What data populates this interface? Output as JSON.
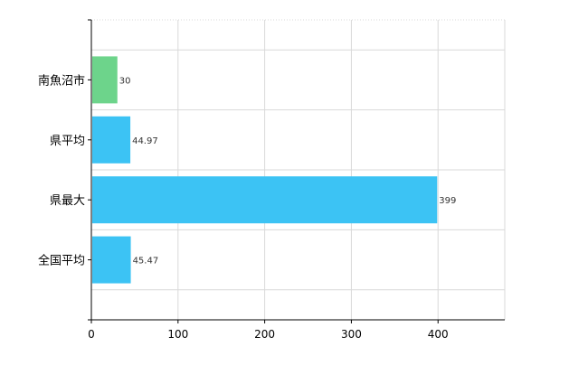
{
  "chart_data": {
    "type": "bar",
    "orientation": "horizontal",
    "categories": [
      "南魚沼市",
      "県平均",
      "県最大",
      "全国平均"
    ],
    "values": [
      30,
      44.97,
      399,
      45.47
    ],
    "value_labels": [
      "30",
      "44.97",
      "399",
      "45.47"
    ],
    "bar_colors": [
      "#6dd48b",
      "#3cc3f4",
      "#3cc3f4",
      "#3cc3f4"
    ],
    "xlim": [
      0,
      477
    ],
    "xticks": [
      0,
      100,
      200,
      300,
      400
    ],
    "xtick_labels": [
      "0",
      "100",
      "200",
      "300",
      "400"
    ],
    "grid": true,
    "legend": "none",
    "title": "",
    "xlabel": "",
    "ylabel": ""
  }
}
